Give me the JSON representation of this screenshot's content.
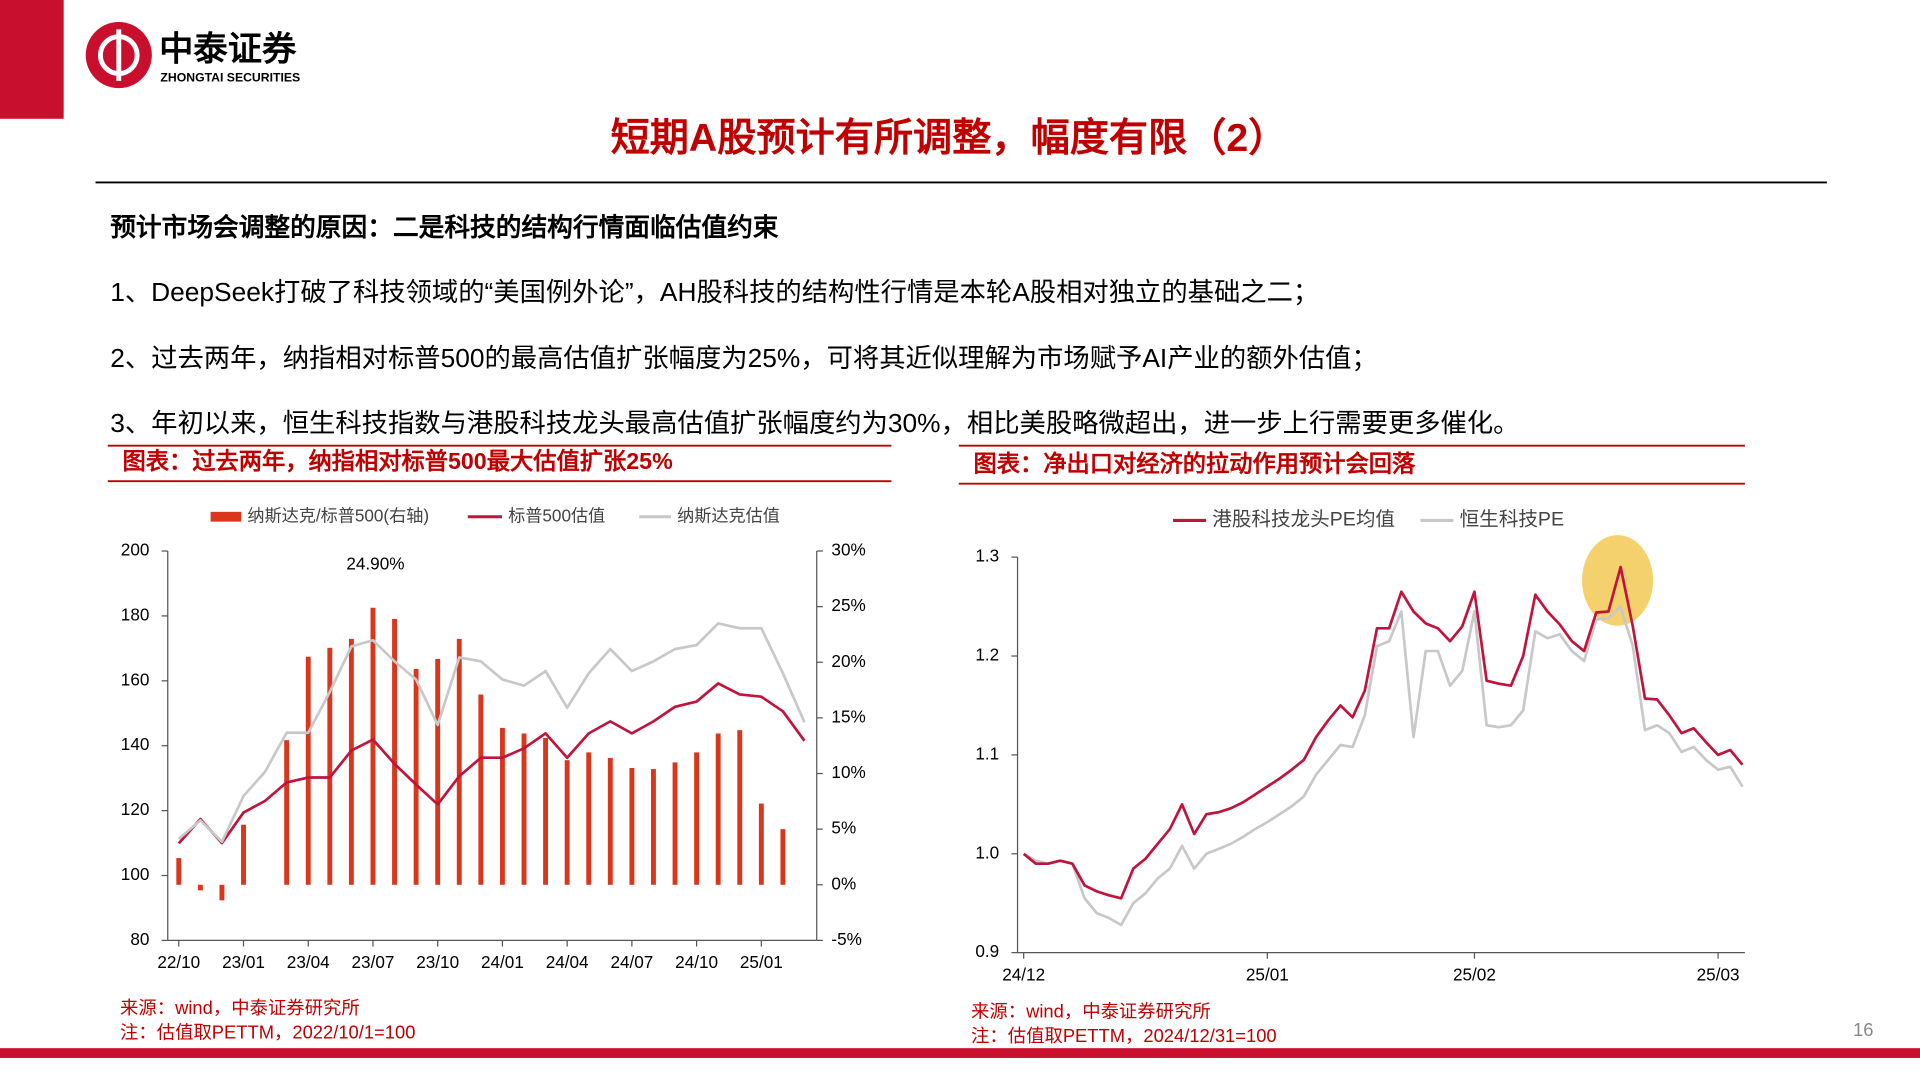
{
  "header": {
    "company": "中泰证券",
    "company_en": "ZHONGTAI SECURITIES",
    "title": "短期A股预计有所调整，幅度有限（2）"
  },
  "body": {
    "subtitle": "预计市场会调整的原因：二是科技的结构行情面临估值约束",
    "points": [
      "1、DeepSeek打破了科技领域的“美国例外论”，AH股科技的结构性行情是本轮A股相对独立的基础之二；",
      "2、过去两年，纳指相对标普500的最高估值扩张幅度为25%，可将其近似理解为市场赋予AI产业的额外估值；",
      "3、年初以来，恒生科技指数与港股科技龙头最高估值扩张幅度约为30%，相比美股略微超出，进一步上行需要更多催化。"
    ]
  },
  "page_number": "16",
  "chart_data": [
    {
      "type": "combo",
      "title": "图表：过去两年，纳指相对标普500最大估值扩张25%",
      "source": "来源：wind，中泰证券研究所",
      "note": "注：估值取PETTM，2022/10/1=100",
      "categories": [
        "22/10",
        null,
        null,
        "23/01",
        null,
        null,
        "23/04",
        null,
        null,
        "23/07",
        null,
        null,
        "23/10",
        null,
        null,
        "24/01",
        null,
        null,
        "24/04",
        null,
        null,
        "24/07",
        null,
        null,
        "24/10",
        null,
        null,
        "25/01",
        null,
        null
      ],
      "series": [
        {
          "name": "纳斯达克/标普500(右轴)",
          "kind": "bar",
          "axis": "y2",
          "color": "#d9361c",
          "values": [
            2.4,
            -0.5,
            -1.4,
            5.4,
            null,
            13.0,
            20.5,
            21.3,
            22.1,
            24.9,
            23.9,
            19.4,
            20.3,
            22.1,
            17.1,
            14.1,
            13.6,
            13.2,
            11.2,
            11.9,
            11.4,
            10.5,
            10.4,
            11.0,
            11.9,
            13.6,
            13.9,
            7.3,
            5.0,
            null
          ],
          "value_labels": [
            null,
            null,
            null,
            null,
            null,
            null,
            null,
            null,
            null,
            "24.90%",
            null,
            null,
            null,
            null,
            null,
            null,
            null,
            null,
            null,
            null,
            null,
            null,
            null,
            null,
            null,
            null,
            null,
            null,
            null,
            null
          ]
        },
        {
          "name": "标普500估值",
          "kind": "line",
          "color": "#c0143c",
          "values": [
            109.9,
            117.4,
            110.0,
            119.4,
            123.0,
            128.7,
            130.2,
            130.2,
            138.5,
            141.9,
            134.4,
            128.0,
            121.9,
            130.6,
            136.3,
            136.3,
            139.2,
            143.8,
            136.3,
            143.8,
            147.5,
            143.8,
            147.5,
            152.0,
            153.6,
            159.2,
            155.8,
            155.1,
            150.6,
            141.5
          ]
        },
        {
          "name": "纳斯达克估值",
          "kind": "line",
          "color": "#c8c8c8",
          "values": [
            111.3,
            117.0,
            110.4,
            124.5,
            132.0,
            144.0,
            144.0,
            156.6,
            170.6,
            172.5,
            166.0,
            160.4,
            146.4,
            167.2,
            166.0,
            160.4,
            158.5,
            163.0,
            151.7,
            162.3,
            169.8,
            163.0,
            166.0,
            169.8,
            171.0,
            177.7,
            176.2,
            176.2,
            162.3,
            147.2
          ]
        }
      ],
      "ylim": [
        80,
        200
      ],
      "yticks": [
        80,
        100,
        120,
        140,
        160,
        180,
        200
      ],
      "y2lim": [
        -5,
        30
      ],
      "y2ticks": [
        {
          "value": -5,
          "label": "-5%"
        },
        {
          "value": 0,
          "label": "0%"
        },
        {
          "value": 5,
          "label": "5%"
        },
        {
          "value": 10,
          "label": "10%"
        },
        {
          "value": 15,
          "label": "15%"
        },
        {
          "value": 20,
          "label": "20%"
        },
        {
          "value": 25,
          "label": "25%"
        },
        {
          "value": 30,
          "label": "30%"
        }
      ],
      "grid": false
    },
    {
      "type": "line",
      "title": "图表：净出口对经济的拉动作用预计会回落",
      "source": "来源：wind，中泰证券研究所",
      "note": "注：估值取PETTM，2024/12/31=100",
      "categories": [
        "24/12",
        null,
        null,
        null,
        null,
        null,
        null,
        null,
        null,
        null,
        null,
        null,
        null,
        null,
        null,
        null,
        null,
        null,
        null,
        null,
        "25/01",
        null,
        null,
        null,
        null,
        null,
        null,
        null,
        null,
        null,
        null,
        null,
        null,
        null,
        null,
        null,
        null,
        "25/02",
        null,
        null,
        null,
        null,
        null,
        null,
        null,
        null,
        null,
        null,
        null,
        null,
        null,
        null,
        null,
        null,
        null,
        null,
        null,
        "25/03",
        null,
        null
      ],
      "series": [
        {
          "name": "港股科技龙头PE均值",
          "kind": "line",
          "color": "#c0143c",
          "values": [
            1.0,
            0.99,
            0.99,
            0.993,
            0.99,
            0.968,
            0.962,
            0.958,
            0.955,
            0.985,
            0.995,
            1.01,
            1.025,
            1.05,
            1.02,
            1.04,
            1.042,
            1.046,
            1.052,
            1.06,
            1.068,
            1.076,
            1.085,
            1.095,
            1.118,
            1.135,
            1.15,
            1.138,
            1.165,
            1.228,
            1.228,
            1.265,
            1.245,
            1.233,
            1.228,
            1.215,
            1.23,
            1.265,
            1.175,
            1.172,
            1.17,
            1.2,
            1.262,
            1.245,
            1.232,
            1.215,
            1.205,
            1.244,
            1.245,
            1.29,
            1.23,
            1.157,
            1.156,
            1.14,
            1.122,
            1.127,
            1.113,
            1.1,
            1.105,
            1.09
          ]
        },
        {
          "name": "恒生科技PE",
          "kind": "line",
          "color": "#c8c8c8",
          "values": [
            1.0,
            0.993,
            0.99,
            0.993,
            0.99,
            0.955,
            0.94,
            0.935,
            0.928,
            0.95,
            0.96,
            0.975,
            0.985,
            1.008,
            0.985,
            1.0,
            1.005,
            1.01,
            1.017,
            1.025,
            1.032,
            1.04,
            1.048,
            1.058,
            1.08,
            1.095,
            1.11,
            1.108,
            1.14,
            1.21,
            1.215,
            1.245,
            1.118,
            1.205,
            1.205,
            1.17,
            1.185,
            1.245,
            1.13,
            1.128,
            1.13,
            1.145,
            1.225,
            1.218,
            1.222,
            1.205,
            1.195,
            1.237,
            1.238,
            1.25,
            1.21,
            1.125,
            1.13,
            1.122,
            1.103,
            1.108,
            1.095,
            1.085,
            1.088,
            1.068
          ]
        }
      ],
      "ylim": [
        0.9,
        1.3
      ],
      "yticks": [
        0.9,
        {
          "value": 1,
          "label": "1.0"
        },
        1.1,
        1.2,
        1.3
      ],
      "grid": false
    }
  ]
}
